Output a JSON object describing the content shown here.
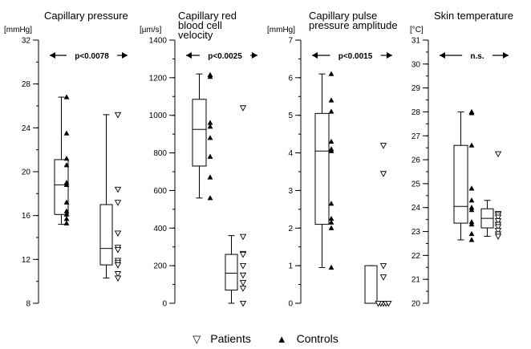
{
  "legend": {
    "patients_label": "Patients",
    "controls_label": "Controls",
    "patients_marker": "open-triangle-down",
    "controls_marker": "filled-triangle-up"
  },
  "chart_data": [
    {
      "type": "box",
      "title_lines": [
        "Capillary pressure"
      ],
      "ylabel": "[mmHg]",
      "ylim": [
        8,
        32
      ],
      "yticks": [
        8,
        12,
        16,
        20,
        24,
        28,
        32
      ],
      "minor_step": 2,
      "annotation": "p<0.0078",
      "controls": {
        "box": {
          "whisker_low": 15.2,
          "q1": 16.1,
          "median": 18.8,
          "q3": 21.1,
          "whisker_high": 26.8
        },
        "points": [
          26.8,
          23.5,
          21.2,
          20.6,
          19.0,
          18.8,
          17.2,
          16.4,
          16.1,
          15.7,
          15.3
        ]
      },
      "patients": {
        "box": {
          "whisker_low": 10.3,
          "q1": 11.5,
          "median": 13.0,
          "q3": 17.0,
          "whisker_high": 25.2
        },
        "points": [
          25.2,
          18.4,
          17.2,
          14.4,
          13.1,
          12.9,
          11.9,
          11.7,
          11.5,
          10.7,
          10.3
        ]
      }
    },
    {
      "type": "box",
      "title_lines": [
        "Capillary red",
        "blood cell",
        "velocity"
      ],
      "ylabel": "[µm/s]",
      "ylim": [
        0,
        1400
      ],
      "yticks": [
        0,
        200,
        400,
        600,
        800,
        1000,
        1200,
        1400
      ],
      "minor_step": 100,
      "annotation": "p<0.0025",
      "controls": {
        "box": {
          "whisker_low": 560,
          "q1": 730,
          "median": 925,
          "q3": 1085,
          "whisker_high": 1220
        },
        "points": [
          1215,
          1205,
          960,
          940,
          880,
          780,
          670,
          560
        ]
      },
      "patients": {
        "box": {
          "whisker_low": 0,
          "q1": 70,
          "median": 160,
          "q3": 260,
          "whisker_high": 360
        },
        "points": [
          1040,
          355,
          265,
          260,
          200,
          150,
          110,
          80,
          0
        ]
      }
    },
    {
      "type": "box",
      "title_lines": [
        "Capillary pulse",
        "pressure amplitude"
      ],
      "ylabel": "[mmHg]",
      "ylim": [
        0,
        7
      ],
      "yticks": [
        0,
        1,
        2,
        3,
        4,
        5,
        6,
        7
      ],
      "minor_step": 0.5,
      "annotation": "p<0.0015",
      "controls": {
        "box": {
          "whisker_low": 0.95,
          "q1": 2.1,
          "median": 4.05,
          "q3": 5.05,
          "whisker_high": 6.1
        },
        "points": [
          6.1,
          5.4,
          5.1,
          4.3,
          4.1,
          4.05,
          2.65,
          2.25,
          2.15,
          2.0,
          0.95
        ]
      },
      "patients": {
        "box": {
          "whisker_low": 0,
          "q1": 0,
          "median": 0,
          "q3": 1.0,
          "whisker_high": 1.0
        },
        "points": [
          4.2,
          3.45,
          1.0,
          0.7,
          0,
          0,
          0,
          0,
          0
        ]
      }
    },
    {
      "type": "box",
      "title_lines": [
        "Skin temperature"
      ],
      "ylabel": "[°C]",
      "ylim": [
        20,
        31
      ],
      "yticks": [
        20,
        21,
        22,
        23,
        24,
        25,
        26,
        27,
        28,
        29,
        30,
        31
      ],
      "minor_step": 0.5,
      "annotation": "n.s.",
      "controls": {
        "box": {
          "whisker_low": 22.65,
          "q1": 23.35,
          "median": 24.05,
          "q3": 26.6,
          "whisker_high": 28.0
        },
        "points": [
          28.0,
          27.95,
          26.6,
          24.8,
          24.3,
          24.0,
          23.9,
          23.4,
          23.3,
          22.9,
          22.65
        ]
      },
      "patients": {
        "box": {
          "whisker_low": 22.8,
          "q1": 23.15,
          "median": 23.55,
          "q3": 23.95,
          "whisker_high": 24.3
        },
        "points": [
          26.25,
          23.75,
          23.7,
          23.6,
          23.45,
          23.3,
          23.2,
          23.05,
          22.9,
          22.8
        ]
      }
    }
  ]
}
